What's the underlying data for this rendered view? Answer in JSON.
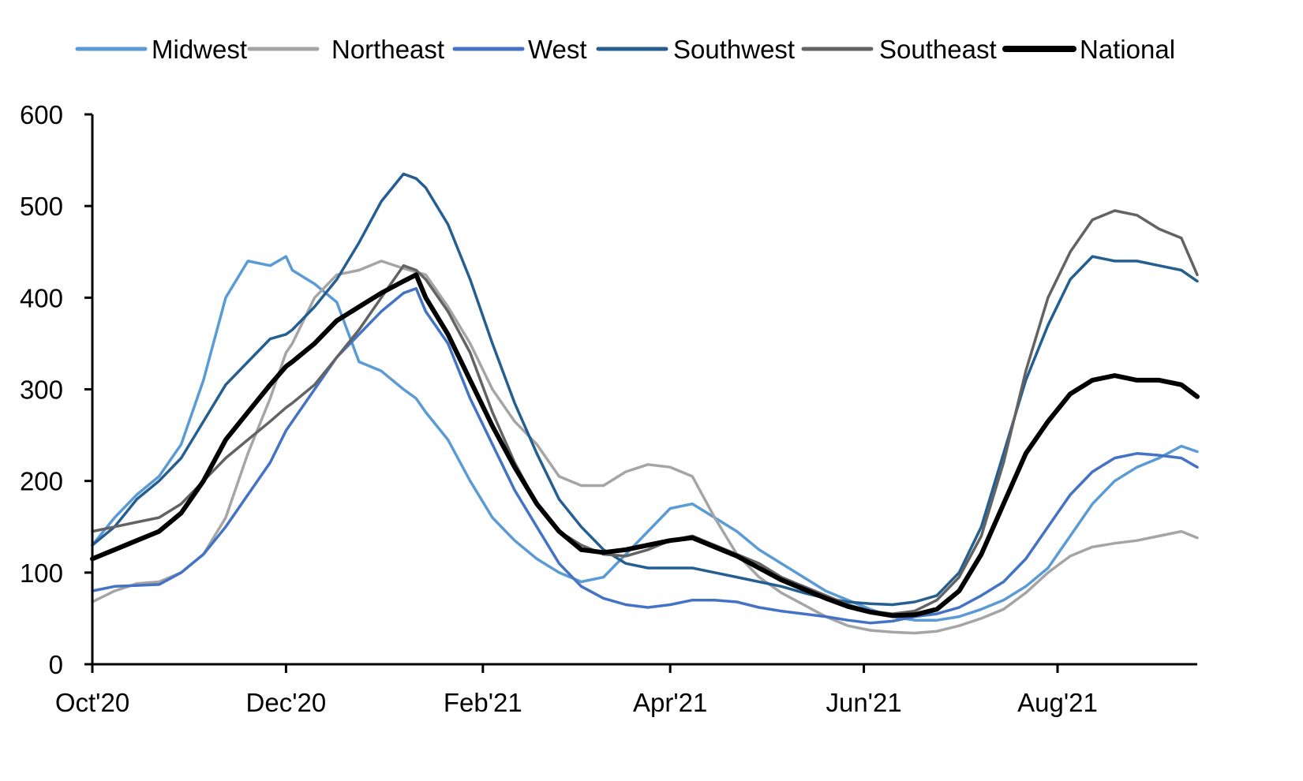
{
  "chart_data": {
    "type": "line",
    "title": "",
    "xlabel": "",
    "ylabel": "",
    "ylim": [
      0,
      600
    ],
    "yticks": [
      0,
      100,
      200,
      300,
      400,
      500,
      600
    ],
    "ytick_labels": [
      "0",
      "100",
      "200",
      "300",
      "400",
      "500",
      "600"
    ],
    "x_unit": "days since 2020-10-01",
    "xlim": [
      0,
      348
    ],
    "xticks": [
      0,
      61,
      123,
      182,
      243,
      304
    ],
    "xtick_labels": [
      "Oct'20",
      "Dec'20",
      "Feb'21",
      "Apr'21",
      "Jun'21",
      "Aug'21"
    ],
    "grid": false,
    "legend_position": "top",
    "x": [
      0,
      7,
      14,
      21,
      28,
      35,
      42,
      49,
      56,
      61,
      63,
      70,
      77,
      84,
      91,
      98,
      102,
      105,
      112,
      119,
      126,
      133,
      140,
      147,
      154,
      161,
      168,
      175,
      182,
      189,
      196,
      203,
      210,
      217,
      224,
      231,
      238,
      245,
      252,
      259,
      266,
      273,
      280,
      287,
      294,
      301,
      308,
      315,
      322,
      329,
      336,
      343,
      348
    ],
    "series": [
      {
        "name": "Midwest",
        "color": "#5B9BD5",
        "width": 3,
        "values": [
          130,
          160,
          185,
          205,
          240,
          310,
          400,
          440,
          435,
          445,
          430,
          415,
          395,
          330,
          320,
          300,
          290,
          275,
          245,
          200,
          160,
          135,
          115,
          100,
          90,
          95,
          120,
          145,
          170,
          175,
          160,
          145,
          125,
          110,
          95,
          80,
          70,
          60,
          52,
          48,
          48,
          52,
          60,
          70,
          85,
          105,
          140,
          175,
          200,
          215,
          225,
          238,
          232
        ]
      },
      {
        "name": "Northeast",
        "color": "#A5A5A5",
        "width": 3,
        "values": [
          68,
          80,
          88,
          90,
          100,
          120,
          160,
          230,
          290,
          340,
          350,
          400,
          425,
          430,
          440,
          432,
          428,
          425,
          390,
          350,
          300,
          265,
          240,
          205,
          195,
          195,
          210,
          218,
          215,
          205,
          160,
          120,
          95,
          78,
          65,
          52,
          42,
          37,
          35,
          34,
          36,
          42,
          50,
          60,
          78,
          100,
          118,
          128,
          132,
          135,
          140,
          145,
          138
        ]
      },
      {
        "name": "West",
        "color": "#4472C4",
        "width": 3,
        "values": [
          80,
          85,
          86,
          87,
          100,
          120,
          150,
          185,
          220,
          255,
          265,
          300,
          335,
          360,
          385,
          405,
          410,
          385,
          350,
          290,
          240,
          190,
          150,
          110,
          85,
          72,
          65,
          62,
          65,
          70,
          70,
          68,
          62,
          58,
          55,
          52,
          48,
          45,
          47,
          52,
          55,
          62,
          75,
          90,
          115,
          150,
          185,
          210,
          225,
          230,
          228,
          225,
          215
        ]
      },
      {
        "name": "Southwest",
        "color": "#255E91",
        "width": 3,
        "values": [
          130,
          150,
          180,
          200,
          225,
          265,
          305,
          330,
          355,
          360,
          365,
          390,
          420,
          460,
          505,
          535,
          530,
          520,
          480,
          420,
          350,
          285,
          230,
          180,
          150,
          125,
          110,
          105,
          105,
          105,
          100,
          95,
          90,
          85,
          78,
          72,
          68,
          66,
          65,
          68,
          75,
          100,
          150,
          230,
          310,
          370,
          420,
          445,
          440,
          440,
          435,
          430,
          418
        ]
      },
      {
        "name": "Southeast",
        "color": "#636363",
        "width": 3,
        "values": [
          145,
          150,
          155,
          160,
          175,
          200,
          225,
          245,
          265,
          280,
          285,
          305,
          335,
          365,
          400,
          435,
          430,
          420,
          385,
          340,
          275,
          220,
          175,
          145,
          130,
          120,
          118,
          125,
          135,
          140,
          130,
          120,
          110,
          95,
          85,
          75,
          65,
          58,
          55,
          58,
          70,
          95,
          140,
          220,
          320,
          400,
          450,
          485,
          495,
          490,
          475,
          465,
          425
        ]
      },
      {
        "name": "National",
        "color": "#000000",
        "width": 5,
        "values": [
          115,
          125,
          135,
          145,
          165,
          200,
          245,
          275,
          305,
          325,
          330,
          350,
          375,
          390,
          405,
          418,
          425,
          400,
          360,
          310,
          260,
          215,
          175,
          145,
          125,
          122,
          125,
          130,
          135,
          138,
          128,
          118,
          105,
          92,
          82,
          72,
          63,
          57,
          53,
          54,
          60,
          80,
          120,
          175,
          230,
          265,
          295,
          310,
          315,
          310,
          310,
          305,
          292
        ]
      }
    ]
  },
  "legend": {
    "items": [
      {
        "label": "Midwest",
        "color": "#5B9BD5"
      },
      {
        "label": "Northeast",
        "color": "#A5A5A5"
      },
      {
        "label": "West",
        "color": "#4472C4"
      },
      {
        "label": "Southwest",
        "color": "#255E91"
      },
      {
        "label": "Southeast",
        "color": "#636363"
      },
      {
        "label": "National",
        "color": "#000000"
      }
    ]
  }
}
